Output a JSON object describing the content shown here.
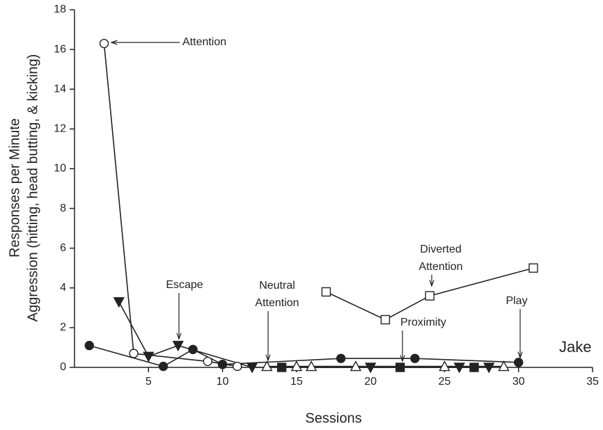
{
  "chart_data": {
    "type": "line",
    "ylabel": [
      "Responses per Minute",
      "Aggression (hitting, head butting, & kicking)"
    ],
    "xlabel": "Sessions",
    "xlim": [
      0,
      35
    ],
    "xticks": [
      5,
      10,
      15,
      20,
      25,
      30,
      35
    ],
    "ylim": [
      0,
      18
    ],
    "yticks": [
      0,
      2,
      4,
      6,
      8,
      10,
      12,
      14,
      16,
      18
    ],
    "series": [
      {
        "marker": "circle-open",
        "color": "#222222",
        "x": [
          2,
          4,
          9,
          11
        ],
        "values": [
          16.3,
          0.7,
          0.3,
          0.05
        ]
      },
      {
        "marker": "triangle-down-filled",
        "color": "#222222",
        "x": [
          3,
          5,
          7,
          12,
          20,
          26,
          28
        ],
        "values": [
          3.3,
          0.55,
          1.1,
          0,
          0,
          0,
          0
        ]
      },
      {
        "marker": "circle-filled",
        "color": "#222222",
        "x": [
          1,
          6,
          8,
          10,
          18,
          23,
          30
        ],
        "values": [
          1.1,
          0.05,
          0.9,
          0.15,
          0.45,
          0.45,
          0.25
        ]
      },
      {
        "marker": "triangle-up-open",
        "color": "#222222",
        "x": [
          13,
          15,
          16,
          19,
          25,
          29
        ],
        "values": [
          0.05,
          0.05,
          0.05,
          0.05,
          0.05,
          0.05
        ]
      },
      {
        "marker": "square-filled",
        "color": "#222222",
        "x": [
          14,
          22,
          27
        ],
        "values": [
          0,
          0,
          0
        ]
      },
      {
        "marker": "square-open",
        "color": "#222222",
        "x": [
          17,
          21,
          24,
          31
        ],
        "values": [
          3.8,
          2.4,
          3.6,
          5.0
        ]
      }
    ],
    "annotations": [
      [
        "Attention"
      ],
      [
        "Escape"
      ],
      [
        "Neutral",
        "Attention"
      ],
      [
        "Proximity"
      ],
      [
        "Diverted",
        "Attention"
      ],
      [
        "Play"
      ],
      [
        "Jake"
      ]
    ]
  }
}
